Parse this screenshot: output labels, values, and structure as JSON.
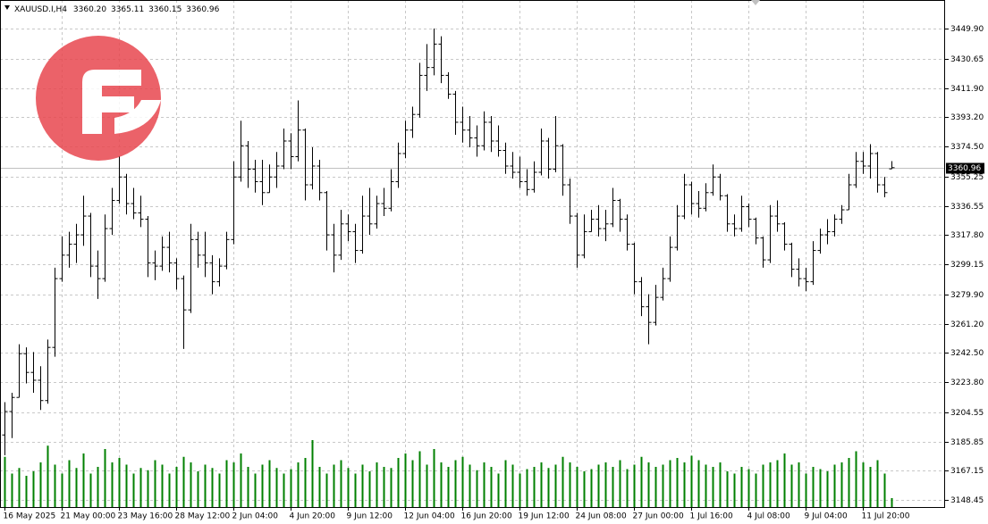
{
  "chart_data": {
    "type": "ohlc",
    "symbol": "XAUUSD.I,H4",
    "header_values": [
      "3360.20",
      "3365.11",
      "3360.15",
      "3360.96"
    ],
    "ylim": [
      3143.9,
      3468.2
    ],
    "yticks": [
      {
        "value": 3449.9,
        "label": "3449.90"
      },
      {
        "value": 3430.65,
        "label": "3430.65"
      },
      {
        "value": 3411.9,
        "label": "3411.90"
      },
      {
        "value": 3393.2,
        "label": "3393.20"
      },
      {
        "value": 3374.5,
        "label": "3374.50"
      },
      {
        "value": 3355.25,
        "label": "3355.25"
      },
      {
        "value": 3336.55,
        "label": "3336.55"
      },
      {
        "value": 3317.8,
        "label": "3317.80"
      },
      {
        "value": 3299.15,
        "label": "3299.15"
      },
      {
        "value": 3279.9,
        "label": "3279.90"
      },
      {
        "value": 3261.2,
        "label": "3261.20"
      },
      {
        "value": 3242.5,
        "label": "3242.50"
      },
      {
        "value": 3223.8,
        "label": "3223.80"
      },
      {
        "value": 3204.55,
        "label": "3204.55"
      },
      {
        "value": 3185.85,
        "label": "3185.85"
      },
      {
        "value": 3167.15,
        "label": "3167.15"
      },
      {
        "value": 3148.45,
        "label": "3148.45"
      }
    ],
    "grid": true,
    "bar_color": "#000000",
    "volume_color": "#008000",
    "volume_lim": [
      0,
      100
    ],
    "categories": [
      "16 May 2025",
      null,
      null,
      null,
      null,
      null,
      null,
      null,
      "21 May 00:00",
      null,
      null,
      null,
      null,
      null,
      null,
      null,
      "23 May 16:00",
      null,
      null,
      null,
      null,
      null,
      null,
      null,
      "28 May 12:00",
      null,
      null,
      null,
      null,
      null,
      null,
      null,
      "2 Jun 04:00",
      null,
      null,
      null,
      null,
      null,
      null,
      null,
      "4 Jun 20:00",
      null,
      null,
      null,
      null,
      null,
      null,
      null,
      "9 Jun 12:00",
      null,
      null,
      null,
      null,
      null,
      null,
      null,
      "12 Jun 04:00",
      null,
      null,
      null,
      null,
      null,
      null,
      null,
      "16 Jun 20:00",
      null,
      null,
      null,
      null,
      null,
      null,
      null,
      "19 Jun 12:00",
      null,
      null,
      null,
      null,
      null,
      null,
      null,
      "24 Jun 08:00",
      null,
      null,
      null,
      null,
      null,
      null,
      null,
      "27 Jun 00:00",
      null,
      null,
      null,
      null,
      null,
      null,
      null,
      "1 Jul 16:00",
      null,
      null,
      null,
      null,
      null,
      null,
      null,
      "4 Jul 08:00",
      null,
      null,
      null,
      null,
      null,
      null,
      null,
      "9 Jul 04:00",
      null,
      null,
      null,
      null,
      null,
      null,
      null,
      "11 Jul 20:00",
      null,
      null,
      null,
      null
    ],
    "ohlc": [
      [
        3190,
        3211,
        3177,
        3205
      ],
      [
        3205,
        3217,
        3188,
        3214
      ],
      [
        3214,
        3248,
        3214,
        3242
      ],
      [
        3242,
        3246,
        3223,
        3230
      ],
      [
        3230,
        3243,
        3217,
        3225
      ],
      [
        3225,
        3234,
        3206,
        3212
      ],
      [
        3212,
        3251,
        3210,
        3246
      ],
      [
        3246,
        3297,
        3240,
        3290
      ],
      [
        3290,
        3317,
        3288,
        3305
      ],
      [
        3305,
        3320,
        3297,
        3312
      ],
      [
        3312,
        3325,
        3300,
        3318
      ],
      [
        3318,
        3343,
        3311,
        3330
      ],
      [
        3330,
        3332,
        3291,
        3298
      ],
      [
        3298,
        3308,
        3277,
        3290
      ],
      [
        3290,
        3331,
        3288,
        3322
      ],
      [
        3322,
        3348,
        3318,
        3340
      ],
      [
        3340,
        3368,
        3338,
        3355
      ],
      [
        3355,
        3357,
        3331,
        3338
      ],
      [
        3338,
        3348,
        3328,
        3332
      ],
      [
        3332,
        3343,
        3323,
        3328
      ],
      [
        3328,
        3330,
        3291,
        3300
      ],
      [
        3300,
        3308,
        3289,
        3298
      ],
      [
        3298,
        3317,
        3295,
        3310
      ],
      [
        3310,
        3320,
        3294,
        3300
      ],
      [
        3300,
        3303,
        3283,
        3290
      ],
      [
        3290,
        3292,
        3245,
        3270
      ],
      [
        3270,
        3325,
        3268,
        3315
      ],
      [
        3315,
        3320,
        3297,
        3305
      ],
      [
        3305,
        3320,
        3291,
        3300
      ],
      [
        3300,
        3305,
        3280,
        3288
      ],
      [
        3288,
        3303,
        3285,
        3298
      ],
      [
        3298,
        3320,
        3296,
        3315
      ],
      [
        3315,
        3365,
        3312,
        3355
      ],
      [
        3355,
        3391,
        3352,
        3375
      ],
      [
        3375,
        3378,
        3348,
        3360
      ],
      [
        3360,
        3366,
        3345,
        3352
      ],
      [
        3352,
        3366,
        3337,
        3345
      ],
      [
        3345,
        3363,
        3345,
        3355
      ],
      [
        3355,
        3371,
        3348,
        3362
      ],
      [
        3362,
        3386,
        3360,
        3378
      ],
      [
        3378,
        3383,
        3360,
        3368
      ],
      [
        3368,
        3404,
        3365,
        3385
      ],
      [
        3385,
        3386,
        3340,
        3350
      ],
      [
        3350,
        3374,
        3347,
        3362
      ],
      [
        3362,
        3366,
        3340,
        3345
      ],
      [
        3345,
        3346,
        3308,
        3318
      ],
      [
        3318,
        3325,
        3294,
        3305
      ],
      [
        3305,
        3334,
        3302,
        3325
      ],
      [
        3325,
        3331,
        3314,
        3320
      ],
      [
        3320,
        3325,
        3300,
        3308
      ],
      [
        3308,
        3343,
        3306,
        3330
      ],
      [
        3330,
        3348,
        3318,
        3325
      ],
      [
        3325,
        3343,
        3322,
        3338
      ],
      [
        3338,
        3348,
        3330,
        3335
      ],
      [
        3335,
        3360,
        3333,
        3352
      ],
      [
        3352,
        3377,
        3348,
        3370
      ],
      [
        3370,
        3391,
        3367,
        3385
      ],
      [
        3385,
        3400,
        3380,
        3395
      ],
      [
        3395,
        3428,
        3393,
        3420
      ],
      [
        3420,
        3440,
        3410,
        3425
      ],
      [
        3425,
        3449.9,
        3420,
        3440
      ],
      [
        3440,
        3445,
        3415,
        3420
      ],
      [
        3420,
        3422,
        3405,
        3408
      ],
      [
        3408,
        3410,
        3382,
        3390
      ],
      [
        3390,
        3400,
        3377,
        3385
      ],
      [
        3385,
        3394,
        3374,
        3380
      ],
      [
        3380,
        3388,
        3368,
        3375
      ],
      [
        3375,
        3397,
        3372,
        3390
      ],
      [
        3390,
        3394,
        3371,
        3378
      ],
      [
        3378,
        3388,
        3368,
        3372
      ],
      [
        3372,
        3377,
        3357,
        3362
      ],
      [
        3362,
        3371,
        3354,
        3358
      ],
      [
        3358,
        3368,
        3348,
        3352
      ],
      [
        3352,
        3360,
        3343,
        3347
      ],
      [
        3347,
        3365,
        3345,
        3358
      ],
      [
        3358,
        3386,
        3356,
        3378
      ],
      [
        3378,
        3380,
        3354,
        3360
      ],
      [
        3360,
        3394,
        3358,
        3375
      ],
      [
        3375,
        3376,
        3343,
        3350
      ],
      [
        3350,
        3354,
        3325,
        3330
      ],
      [
        3330,
        3332,
        3297,
        3305
      ],
      [
        3305,
        3331,
        3303,
        3320
      ],
      [
        3320,
        3334,
        3320,
        3328
      ],
      [
        3328,
        3337,
        3317,
        3322
      ],
      [
        3322,
        3334,
        3314,
        3325
      ],
      [
        3325,
        3348,
        3323,
        3340
      ],
      [
        3340,
        3341,
        3320,
        3328
      ],
      [
        3328,
        3331,
        3308,
        3312
      ],
      [
        3312,
        3313,
        3280,
        3288
      ],
      [
        3288,
        3291,
        3266,
        3272
      ],
      [
        3272,
        3280,
        3248,
        3262
      ],
      [
        3262,
        3286,
        3260,
        3278
      ],
      [
        3278,
        3297,
        3276,
        3290
      ],
      [
        3290,
        3317,
        3288,
        3310
      ],
      [
        3310,
        3337,
        3308,
        3330
      ],
      [
        3330,
        3357,
        3328,
        3350
      ],
      [
        3350,
        3352,
        3331,
        3338
      ],
      [
        3338,
        3346,
        3329,
        3335
      ],
      [
        3335,
        3351,
        3333,
        3345
      ],
      [
        3345,
        3363,
        3343,
        3355
      ],
      [
        3355,
        3357,
        3340,
        3343
      ],
      [
        3343,
        3344,
        3320,
        3325
      ],
      [
        3325,
        3331,
        3317,
        3322
      ],
      [
        3322,
        3343,
        3320,
        3336
      ],
      [
        3336,
        3338,
        3323,
        3328
      ],
      [
        3328,
        3329,
        3312,
        3316
      ],
      [
        3316,
        3317,
        3297,
        3302
      ],
      [
        3302,
        3337,
        3300,
        3330
      ],
      [
        3330,
        3340,
        3320,
        3325
      ],
      [
        3325,
        3326,
        3308,
        3312
      ],
      [
        3312,
        3313,
        3291,
        3296
      ],
      [
        3296,
        3303,
        3285,
        3290
      ],
      [
        3290,
        3297,
        3282,
        3288
      ],
      [
        3288,
        3314,
        3286,
        3308
      ],
      [
        3308,
        3322,
        3306,
        3318
      ],
      [
        3318,
        3328,
        3312,
        3320
      ],
      [
        3320,
        3331,
        3317,
        3328
      ],
      [
        3328,
        3337,
        3325,
        3334
      ],
      [
        3334,
        3357,
        3334,
        3350
      ],
      [
        3350,
        3371,
        3348,
        3365
      ],
      [
        3365,
        3371,
        3357,
        3362
      ],
      [
        3362,
        3376,
        3354,
        3370
      ],
      [
        3370,
        3371,
        3345,
        3350
      ],
      [
        3350,
        3355,
        3342,
        3345
      ],
      [
        3360.2,
        3365.11,
        3360.15,
        3360.96
      ]
    ],
    "volume": [
      45,
      30,
      35,
      28,
      32,
      40,
      55,
      38,
      30,
      42,
      35,
      48,
      30,
      36,
      52,
      40,
      44,
      38,
      30,
      35,
      33,
      42,
      38,
      30,
      36,
      45,
      40,
      32,
      38,
      35,
      30,
      42,
      40,
      48,
      36,
      30,
      38,
      42,
      35,
      30,
      34,
      40,
      44,
      60,
      36,
      30,
      38,
      42,
      35,
      30,
      38,
      32,
      40,
      36,
      35,
      44,
      48,
      42,
      50,
      38,
      52,
      40,
      36,
      42,
      45,
      38,
      33,
      40,
      36,
      30,
      42,
      38,
      30,
      34,
      36,
      40,
      35,
      38,
      45,
      40,
      36,
      32,
      34,
      38,
      40,
      36,
      42,
      34,
      38,
      45,
      40,
      36,
      38,
      42,
      44,
      40,
      46,
      42,
      38,
      36,
      40,
      32,
      30,
      36,
      34,
      30,
      38,
      40,
      42,
      48,
      38,
      40,
      30,
      36,
      34,
      32,
      38,
      40,
      44,
      50,
      40,
      36,
      42,
      30,
      8
    ]
  }
}
